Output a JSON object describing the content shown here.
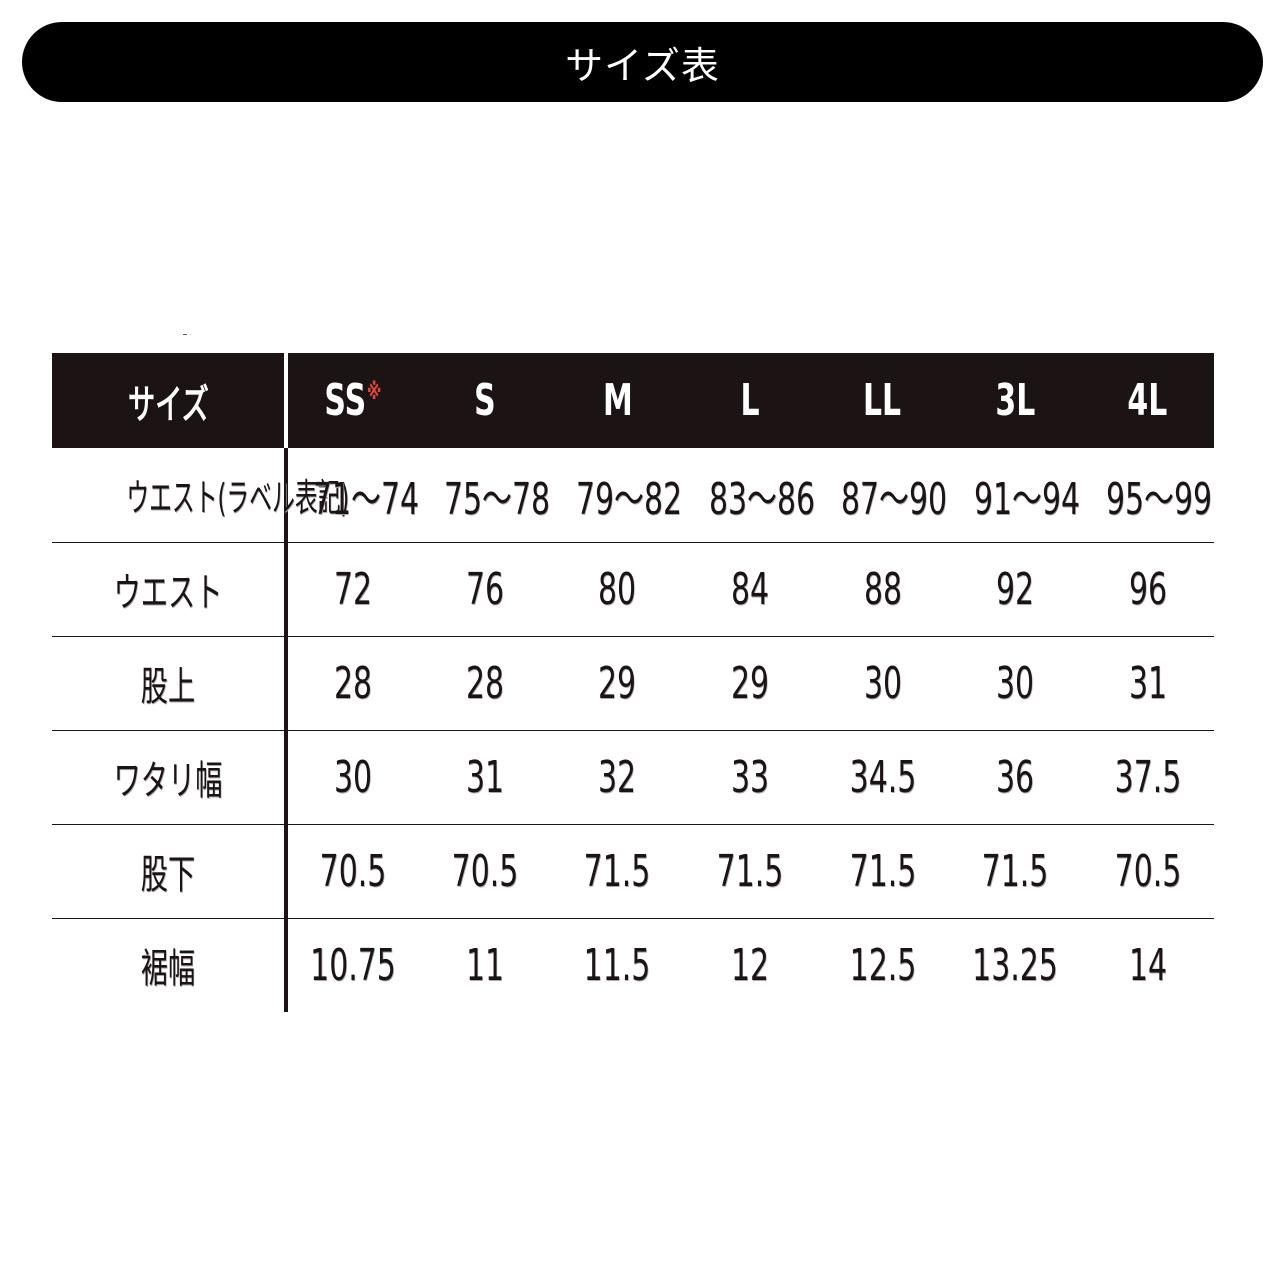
{
  "title": "サイズ表",
  "colors": {
    "header_bg": "#1b1314",
    "note_mark": "#d9483b"
  },
  "table": {
    "header": {
      "label": "サイズ",
      "sizes": [
        {
          "label": "SS",
          "mark": "※"
        },
        {
          "label": "S",
          "mark": ""
        },
        {
          "label": "M",
          "mark": ""
        },
        {
          "label": "L",
          "mark": ""
        },
        {
          "label": "LL",
          "mark": ""
        },
        {
          "label": "3L",
          "mark": ""
        },
        {
          "label": "4L",
          "mark": ""
        }
      ]
    },
    "rows": [
      {
        "label": "ウエスト(ラベル表記)",
        "values": [
          "71～74",
          "75～78",
          "79～82",
          "83～86",
          "87～90",
          "91～94",
          "95～99"
        ]
      },
      {
        "label": "ウエスト",
        "values": [
          "72",
          "76",
          "80",
          "84",
          "88",
          "92",
          "96"
        ]
      },
      {
        "label": "股上",
        "values": [
          "28",
          "28",
          "29",
          "29",
          "30",
          "30",
          "31"
        ]
      },
      {
        "label": "ワタリ幅",
        "values": [
          "30",
          "31",
          "32",
          "33",
          "34.5",
          "36",
          "37.5"
        ]
      },
      {
        "label": "股下",
        "values": [
          "70.5",
          "70.5",
          "71.5",
          "71.5",
          "71.5",
          "71.5",
          "70.5"
        ]
      },
      {
        "label": "裾幅",
        "values": [
          "10.75",
          "11",
          "11.5",
          "12",
          "12.5",
          "13.25",
          "14"
        ]
      }
    ]
  }
}
